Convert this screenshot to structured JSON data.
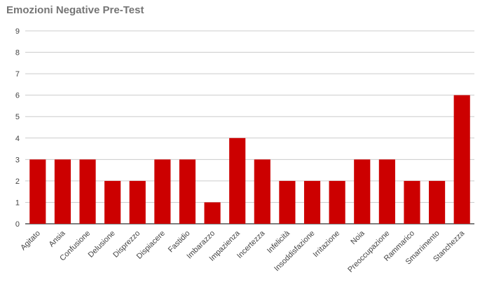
{
  "chart_data": {
    "type": "bar",
    "title": "Emozioni Negative Pre-Test",
    "categories": [
      "Agitato",
      "Ansia",
      "Confusione",
      "Delusione",
      "Disprezzo",
      "Dispiacere",
      "Fastidio",
      "Imbarazzo",
      "Impazienza",
      "Incertezza",
      "Infelicità",
      "Insoddisfazione",
      "Irritazione",
      "Noia",
      "Preoccupazione",
      "Rammarico",
      "Smarrimento",
      "Stanchezza"
    ],
    "values": [
      3,
      3,
      3,
      2,
      2,
      3,
      3,
      1,
      4,
      3,
      2,
      2,
      2,
      3,
      3,
      2,
      2,
      6
    ],
    "ylim": [
      0,
      9
    ],
    "yticks": [
      "0",
      "1",
      "2",
      "3",
      "4",
      "5",
      "6",
      "7",
      "8",
      "9"
    ],
    "grid": true,
    "legend": "none",
    "bar_color": "#cc0000",
    "grid_color": "#cccccc",
    "axis_color": "#333333"
  }
}
